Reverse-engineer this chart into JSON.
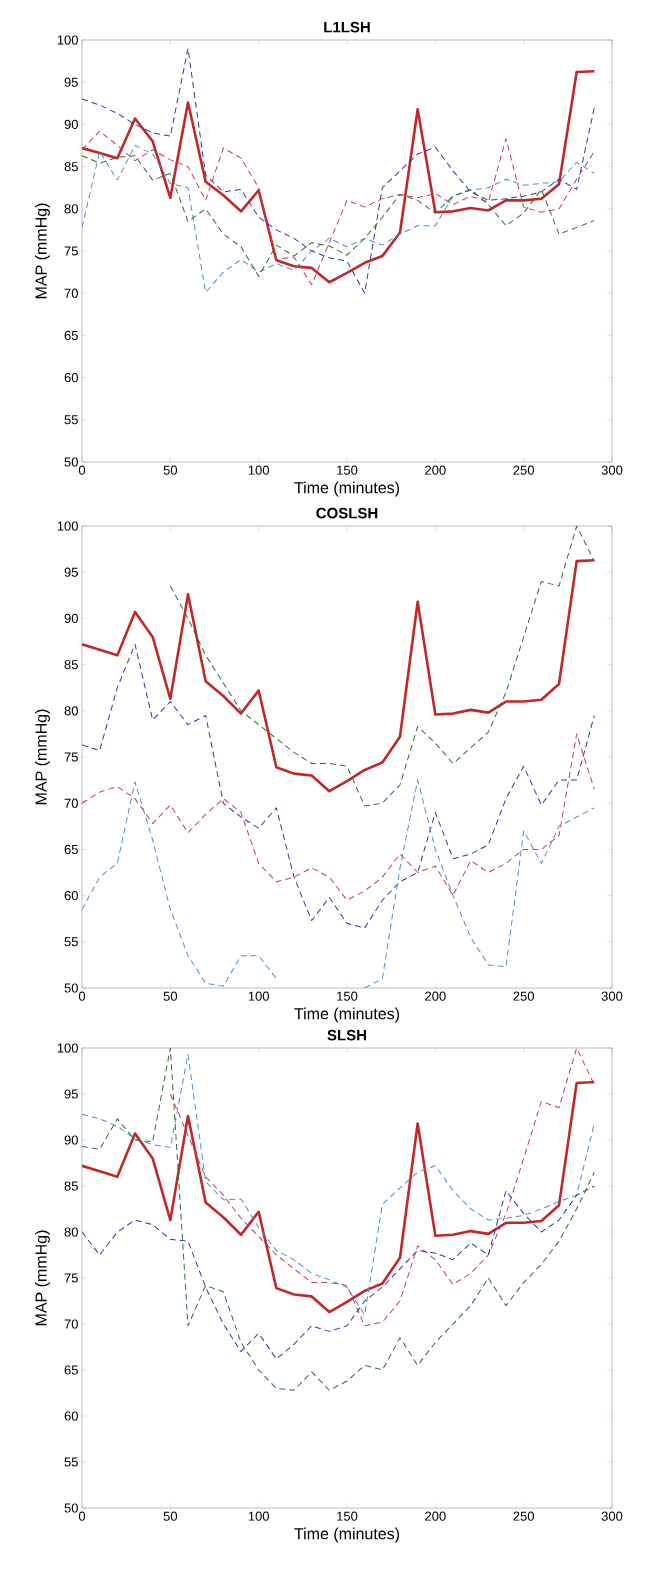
{
  "chart_data": [
    {
      "type": "line",
      "title": "L1LSH",
      "xlabel": "Time (minutes)",
      "ylabel": "MAP (mmHg)",
      "x": [
        0,
        10,
        20,
        30,
        40,
        50,
        60,
        70,
        80,
        90,
        100,
        110,
        120,
        130,
        140,
        150,
        160,
        170,
        180,
        190,
        200,
        210,
        220,
        230,
        240,
        250,
        260,
        270,
        280,
        290
      ],
      "xlim": [
        0,
        300
      ],
      "ylim": [
        50,
        100
      ],
      "xticks": [
        0,
        50,
        100,
        150,
        200,
        250,
        300
      ],
      "yticks": [
        50,
        55,
        60,
        65,
        70,
        75,
        80,
        85,
        90,
        95,
        100
      ],
      "series": [
        {
          "color": "#c0282a",
          "line_style": "solid",
          "values": [
            87.2,
            86.6,
            86,
            90.7,
            88,
            81.3,
            92.6,
            83.2,
            81.6,
            79.7,
            82.2,
            73.9,
            73.2,
            73,
            71.3,
            72.4,
            73.6,
            74.4,
            77.2,
            91.8,
            79.6,
            79.7,
            80.1,
            79.8,
            81,
            81,
            81.2,
            82.9,
            96.2,
            96.3
          ]
        },
        {
          "color": "#2b3a9e",
          "line_style": "dashed",
          "values": [
            93,
            92.3,
            91.3,
            90,
            89,
            88.6,
            99,
            84,
            82,
            82.3,
            79,
            77.5,
            76.5,
            75,
            74.2,
            73.8,
            70,
            82.5,
            84.5,
            86.5,
            87.3,
            84.5,
            82,
            81,
            81.2,
            81.5,
            82,
            83.5,
            82.3,
            92
          ]
        },
        {
          "color": "#c43a6a",
          "line_style": "dashed",
          "values": [
            87,
            89.2,
            87.5,
            85.7,
            87,
            85.8,
            85,
            81,
            87.2,
            86,
            82.5,
            74,
            74.3,
            71,
            76,
            81,
            80.2,
            81.2,
            81.7,
            81.3,
            81.8,
            80.5,
            81.5,
            80.8,
            88.3,
            80.2,
            79.6,
            80,
            83.5,
            86.8
          ]
        },
        {
          "color": "#4a90d0",
          "line_style": "dashed",
          "values": [
            77.8,
            86.8,
            83.4,
            87.5,
            86.5,
            83,
            82.5,
            70.1,
            72.5,
            74,
            72.5,
            73.5,
            72.7,
            75,
            76.5,
            75.5,
            76.5,
            75.7,
            77,
            78,
            78,
            81.5,
            82.2,
            82.5,
            83.5,
            82.8,
            83,
            83.2,
            85.5,
            84.2
          ]
        },
        {
          "color": "#2e6e2e",
          "line_style": "dashed",
          "values": [
            86.3,
            85.4,
            86.1,
            86.3,
            83.4,
            84.2,
            78.5,
            80,
            77,
            75.5,
            72,
            75.7,
            74.4,
            76,
            75.6,
            74.5,
            76.5,
            79,
            81.7,
            81,
            79.5,
            81.5,
            82.3,
            80.5,
            78,
            79.5,
            82.3,
            77,
            77.8,
            78.6
          ]
        }
      ]
    },
    {
      "type": "line",
      "title": "COSLSH",
      "xlabel": "Time (minutes)",
      "ylabel": "MAP (mmHg)",
      "x": [
        0,
        10,
        20,
        30,
        40,
        50,
        60,
        70,
        80,
        90,
        100,
        110,
        120,
        130,
        140,
        150,
        160,
        170,
        180,
        190,
        200,
        210,
        220,
        230,
        240,
        250,
        260,
        270,
        280,
        290
      ],
      "xlim": [
        0,
        300
      ],
      "ylim": [
        50,
        100
      ],
      "xticks": [
        0,
        50,
        100,
        150,
        200,
        250,
        300
      ],
      "yticks": [
        50,
        55,
        60,
        65,
        70,
        75,
        80,
        85,
        90,
        95,
        100
      ],
      "series": [
        {
          "color": "#c0282a",
          "line_style": "solid",
          "values": [
            87.2,
            86.6,
            86,
            90.7,
            88,
            81.3,
            92.6,
            83.2,
            81.6,
            79.7,
            82.2,
            73.9,
            73.2,
            73,
            71.3,
            72.4,
            73.6,
            74.4,
            77.2,
            91.8,
            79.6,
            79.7,
            80.1,
            79.8,
            81,
            81,
            81.2,
            82.9,
            96.2,
            96.3
          ]
        },
        {
          "color": "#2e6e2e",
          "line_style": "dashed",
          "values": [
            null,
            null,
            null,
            null,
            null,
            93.5,
            90,
            86,
            83,
            80,
            78.5,
            77,
            75.5,
            74.3,
            74.3,
            74,
            69.7,
            70,
            72,
            78.3,
            76.5,
            74.3,
            76,
            77.7,
            82,
            88,
            94,
            93.5,
            100,
            96.2
          ]
        },
        {
          "color": "#2b3a9e",
          "line_style": "dashed",
          "values": [
            76.3,
            75.7,
            82.5,
            87.2,
            79,
            81,
            78.5,
            79.5,
            70,
            68.5,
            67.3,
            69.5,
            62,
            57.3,
            59.8,
            57,
            56.5,
            59.5,
            61.5,
            62.5,
            69,
            64,
            64.5,
            65.5,
            70.5,
            74,
            69.8,
            72.5,
            72.5,
            79.5
          ]
        },
        {
          "color": "#c43a6a",
          "line_style": "dashed",
          "values": [
            70,
            71.2,
            71.8,
            70.5,
            67.8,
            69.8,
            66.8,
            68.8,
            70.5,
            69,
            63.5,
            61.5,
            62,
            63,
            62,
            59.5,
            60.5,
            62,
            64.5,
            62.5,
            63.2,
            60,
            63.8,
            62.5,
            63.5,
            65,
            65,
            66.5,
            77.5,
            71.5
          ]
        },
        {
          "color": "#4a90d0",
          "line_style": "dashed",
          "values": [
            58.5,
            62,
            63.5,
            72.3,
            66,
            58.5,
            53.5,
            50.5,
            50.2,
            53.5,
            53.5,
            51,
            null,
            null,
            null,
            null,
            50,
            51,
            63,
            72.5,
            65,
            60,
            55.5,
            52.5,
            52.3,
            67,
            63.5,
            67.5,
            68.5,
            69.5
          ]
        }
      ]
    },
    {
      "type": "line",
      "title": "SLSH",
      "xlabel": "Time (minutes)",
      "ylabel": "MAP (mmHg)",
      "x": [
        0,
        10,
        20,
        30,
        40,
        50,
        60,
        70,
        80,
        90,
        100,
        110,
        120,
        130,
        140,
        150,
        160,
        170,
        180,
        190,
        200,
        210,
        220,
        230,
        240,
        250,
        260,
        270,
        280,
        290
      ],
      "xlim": [
        0,
        300
      ],
      "ylim": [
        50,
        100
      ],
      "xticks": [
        0,
        50,
        100,
        150,
        200,
        250,
        300
      ],
      "yticks": [
        50,
        55,
        60,
        65,
        70,
        75,
        80,
        85,
        90,
        95,
        100
      ],
      "series": [
        {
          "color": "#c0282a",
          "line_style": "solid",
          "values": [
            87.2,
            86.6,
            86,
            90.7,
            88,
            81.3,
            92.6,
            83.2,
            81.6,
            79.7,
            82.2,
            73.9,
            73.2,
            73,
            71.3,
            72.4,
            73.6,
            74.4,
            77.2,
            91.8,
            79.6,
            79.7,
            80.1,
            79.8,
            81,
            81,
            81.2,
            82.9,
            96.2,
            96.3
          ]
        },
        {
          "color": "#4a90d0",
          "line_style": "dashed",
          "values": [
            92.8,
            92.3,
            91.5,
            90.1,
            89.5,
            89.2,
            99.3,
            85.5,
            83.5,
            83.6,
            80.5,
            78,
            77,
            75.5,
            74.8,
            74,
            71,
            83,
            84.8,
            86.5,
            87.2,
            84.5,
            82.5,
            81.3,
            81.5,
            81.8,
            82.5,
            83.3,
            84,
            91.8
          ]
        },
        {
          "color": "#2e6e2e",
          "line_style": "dashed",
          "values": [
            89.3,
            89,
            92.3,
            90,
            89.8,
            100,
            69.8,
            74.2,
            73.5,
            68,
            65,
            63,
            62.8,
            64.8,
            62.8,
            63.8,
            65.5,
            65,
            68.5,
            65.5,
            68,
            70,
            72,
            75,
            72,
            74.5,
            76.5,
            79,
            82.5,
            86.5
          ]
        },
        {
          "color": "#c43a6a",
          "line_style": "dashed",
          "values": [
            null,
            null,
            null,
            null,
            null,
            95,
            90.5,
            86,
            84,
            81.5,
            79.5,
            77.5,
            76,
            74.5,
            74.5,
            74.2,
            69.8,
            70.2,
            72.5,
            78.5,
            77,
            74.3,
            75.5,
            77.5,
            82,
            88,
            94.2,
            93.5,
            100,
            96
          ]
        },
        {
          "color": "#2b3a9e",
          "line_style": "dashed",
          "values": [
            80,
            77.5,
            80,
            81.3,
            80.8,
            79.2,
            79,
            74,
            70,
            67,
            69,
            66.2,
            67.8,
            69.8,
            69.2,
            69.8,
            72.5,
            74,
            76,
            78,
            77.7,
            77,
            78.8,
            77.5,
            84.5,
            82,
            80,
            81.3,
            84,
            85
          ]
        }
      ]
    }
  ]
}
